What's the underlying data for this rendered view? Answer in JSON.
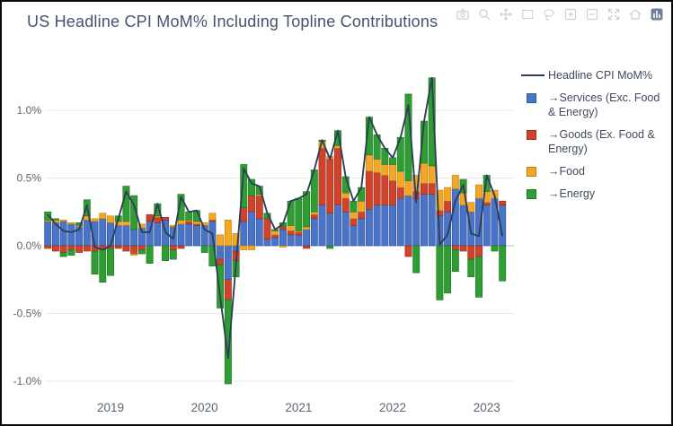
{
  "title": "US Headline CPI MoM% Including Topline Contributions",
  "toolbar": {
    "icons": [
      {
        "name": "camera-icon"
      },
      {
        "name": "zoom-magnifier-icon"
      },
      {
        "name": "pan-icon"
      },
      {
        "name": "box-select-icon"
      },
      {
        "name": "lasso-select-icon"
      },
      {
        "name": "zoom-in-icon"
      },
      {
        "name": "zoom-out-icon"
      },
      {
        "name": "autoscale-icon"
      },
      {
        "name": "reset-axes-home-icon"
      },
      {
        "name": "plotly-logo-icon"
      }
    ],
    "icon_color": "#c9ced8",
    "logo_color": "#6e7f99"
  },
  "legend": {
    "items": [
      {
        "key": "headline",
        "swatch": "line",
        "color": "#2e4057",
        "label": "Headline CPI MoM%"
      },
      {
        "key": "services",
        "swatch": "square",
        "color": "#4a74c9",
        "label": "→Services (Exc. Food & Energy)"
      },
      {
        "key": "goods",
        "swatch": "square",
        "color": "#d0432a",
        "label": "→Goods (Ex. Food & Energy)"
      },
      {
        "key": "food",
        "swatch": "square",
        "color": "#f5a623",
        "label": "→Food"
      },
      {
        "key": "energy",
        "swatch": "square",
        "color": "#2f9e32",
        "label": "→Energy"
      }
    ]
  },
  "chart_data": {
    "type": "bar",
    "barmode": "stack",
    "title": "US Headline CPI MoM% Including Topline Contributions",
    "xlabel": "",
    "ylabel": "",
    "grid": true,
    "legend_position": "right",
    "ylim": [
      -1.05,
      1.3
    ],
    "yticks": [
      {
        "value": 1.0,
        "label": "1.0%"
      },
      {
        "value": 0.5,
        "label": "0.5%"
      },
      {
        "value": 0.0,
        "label": "0.0%"
      },
      {
        "value": -0.5,
        "label": "-0.5%"
      },
      {
        "value": -1.0,
        "label": "-1.0%"
      }
    ],
    "xticks": [
      {
        "label": "2019",
        "month": "2019-01"
      },
      {
        "label": "2020",
        "month": "2020-01"
      },
      {
        "label": "2021",
        "month": "2021-01"
      },
      {
        "label": "2022",
        "month": "2022-01"
      },
      {
        "label": "2023",
        "month": "2023-01"
      }
    ],
    "x_months": [
      "2018-05",
      "2018-06",
      "2018-07",
      "2018-08",
      "2018-09",
      "2018-10",
      "2018-11",
      "2018-12",
      "2019-01",
      "2019-02",
      "2019-03",
      "2019-04",
      "2019-05",
      "2019-06",
      "2019-07",
      "2019-08",
      "2019-09",
      "2019-10",
      "2019-11",
      "2019-12",
      "2020-01",
      "2020-02",
      "2020-03",
      "2020-04",
      "2020-05",
      "2020-06",
      "2020-07",
      "2020-08",
      "2020-09",
      "2020-10",
      "2020-11",
      "2020-12",
      "2021-01",
      "2021-02",
      "2021-03",
      "2021-04",
      "2021-05",
      "2021-06",
      "2021-07",
      "2021-08",
      "2021-09",
      "2021-10",
      "2021-11",
      "2021-12",
      "2022-01",
      "2022-02",
      "2022-03",
      "2022-04",
      "2022-05",
      "2022-06",
      "2022-07",
      "2022-08",
      "2022-09",
      "2022-10",
      "2022-11",
      "2022-12",
      "2023-01",
      "2023-02",
      "2023-03"
    ],
    "series": [
      {
        "name": "→Services (Exc. Food & Energy)",
        "color": "#4a74c9",
        "border": "#2d4f96",
        "values": [
          0.18,
          0.17,
          0.18,
          0.16,
          0.14,
          0.19,
          0.18,
          0.2,
          0.17,
          0.15,
          0.15,
          0.12,
          0.13,
          0.18,
          0.17,
          0.19,
          0.14,
          0.16,
          0.16,
          0.15,
          0.15,
          0.18,
          -0.1,
          -0.25,
          -0.04,
          0.18,
          0.25,
          0.2,
          0.05,
          0.06,
          0.12,
          0.08,
          0.08,
          0.12,
          0.2,
          0.3,
          0.24,
          0.3,
          0.25,
          0.15,
          0.2,
          0.27,
          0.3,
          0.3,
          0.3,
          0.35,
          0.37,
          0.35,
          0.38,
          0.38,
          0.22,
          0.25,
          0.42,
          0.3,
          0.25,
          0.35,
          0.3,
          0.35,
          0.3
        ]
      },
      {
        "name": "→Goods (Ex. Food & Energy)",
        "color": "#d0432a",
        "border": "#8f2b18",
        "values": [
          -0.02,
          -0.04,
          -0.05,
          -0.03,
          -0.05,
          -0.04,
          -0.04,
          -0.03,
          -0.02,
          -0.02,
          -0.04,
          -0.06,
          -0.03,
          0.05,
          0.04,
          0.02,
          -0.03,
          -0.02,
          0.02,
          0.01,
          0.0,
          0.01,
          -0.04,
          -0.15,
          -0.07,
          0.1,
          0.12,
          0.17,
          0.15,
          0.02,
          0.02,
          0.03,
          0.02,
          -0.02,
          0.03,
          0.42,
          0.4,
          0.42,
          0.1,
          0.05,
          0.05,
          0.28,
          0.24,
          0.22,
          0.18,
          0.08,
          -0.08,
          0.05,
          0.08,
          0.08,
          0.04,
          0.08,
          -0.03,
          -0.04,
          -0.1,
          -0.08,
          0.02,
          0.0,
          0.03
        ]
      },
      {
        "name": "→Food",
        "color": "#f5a623",
        "border": "#bb7c11",
        "values": [
          0.01,
          0.02,
          0.01,
          0.01,
          0.01,
          0.03,
          0.02,
          0.04,
          0.05,
          0.03,
          0.03,
          -0.01,
          0.03,
          0.0,
          0.01,
          0.0,
          0.01,
          0.03,
          0.01,
          0.02,
          0.02,
          0.05,
          0.08,
          0.19,
          0.09,
          -0.03,
          -0.03,
          0.01,
          0.0,
          0.03,
          -0.01,
          0.04,
          0.01,
          0.02,
          0.02,
          0.05,
          0.02,
          0.02,
          0.04,
          0.05,
          0.08,
          0.12,
          0.1,
          0.08,
          0.12,
          0.12,
          0.11,
          0.12,
          0.15,
          0.13,
          0.15,
          0.1,
          0.1,
          0.09,
          0.07,
          0.1,
          0.08,
          0.06,
          0.0
        ]
      },
      {
        "name": "→Energy",
        "color": "#2f9e32",
        "border": "#1d6e20",
        "values": [
          0.06,
          0.01,
          -0.03,
          -0.04,
          0.02,
          0.12,
          -0.17,
          -0.24,
          -0.2,
          0.04,
          0.26,
          0.25,
          -0.03,
          -0.13,
          0.09,
          -0.11,
          -0.07,
          0.19,
          0.06,
          0.08,
          -0.05,
          -0.15,
          -0.32,
          -0.62,
          -0.12,
          0.32,
          0.12,
          0.06,
          0.04,
          0.01,
          0.03,
          0.18,
          0.24,
          0.26,
          0.31,
          0.01,
          -0.02,
          0.11,
          0.12,
          0.08,
          0.1,
          0.28,
          0.18,
          0.12,
          0.05,
          0.25,
          0.64,
          -0.2,
          0.31,
          0.65,
          -0.4,
          -0.35,
          -0.16,
          0.1,
          -0.13,
          -0.3,
          0.12,
          -0.04,
          -0.26
        ]
      }
    ],
    "line_series": {
      "name": "Headline CPI MoM%",
      "color": "#2e4057",
      "values": [
        0.23,
        0.16,
        0.11,
        0.1,
        0.12,
        0.3,
        -0.01,
        -0.03,
        0.0,
        0.2,
        0.4,
        0.3,
        0.1,
        0.1,
        0.31,
        0.1,
        0.05,
        0.36,
        0.25,
        0.26,
        0.12,
        0.09,
        -0.38,
        -0.83,
        -0.14,
        0.57,
        0.46,
        0.44,
        0.24,
        0.12,
        0.16,
        0.33,
        0.35,
        0.38,
        0.56,
        0.78,
        0.64,
        0.85,
        0.51,
        0.33,
        0.43,
        0.95,
        0.82,
        0.72,
        0.65,
        0.8,
        1.04,
        0.32,
        0.92,
        1.24,
        0.01,
        0.08,
        0.33,
        0.45,
        0.09,
        0.07,
        0.52,
        0.37,
        0.07
      ]
    },
    "style": {
      "grid_color": "#e6e9f0",
      "zero_line_color": "#b6bcc6",
      "axis_text_color": "#5c6670",
      "title_color": "#44546f",
      "background": "#ffffff"
    }
  }
}
